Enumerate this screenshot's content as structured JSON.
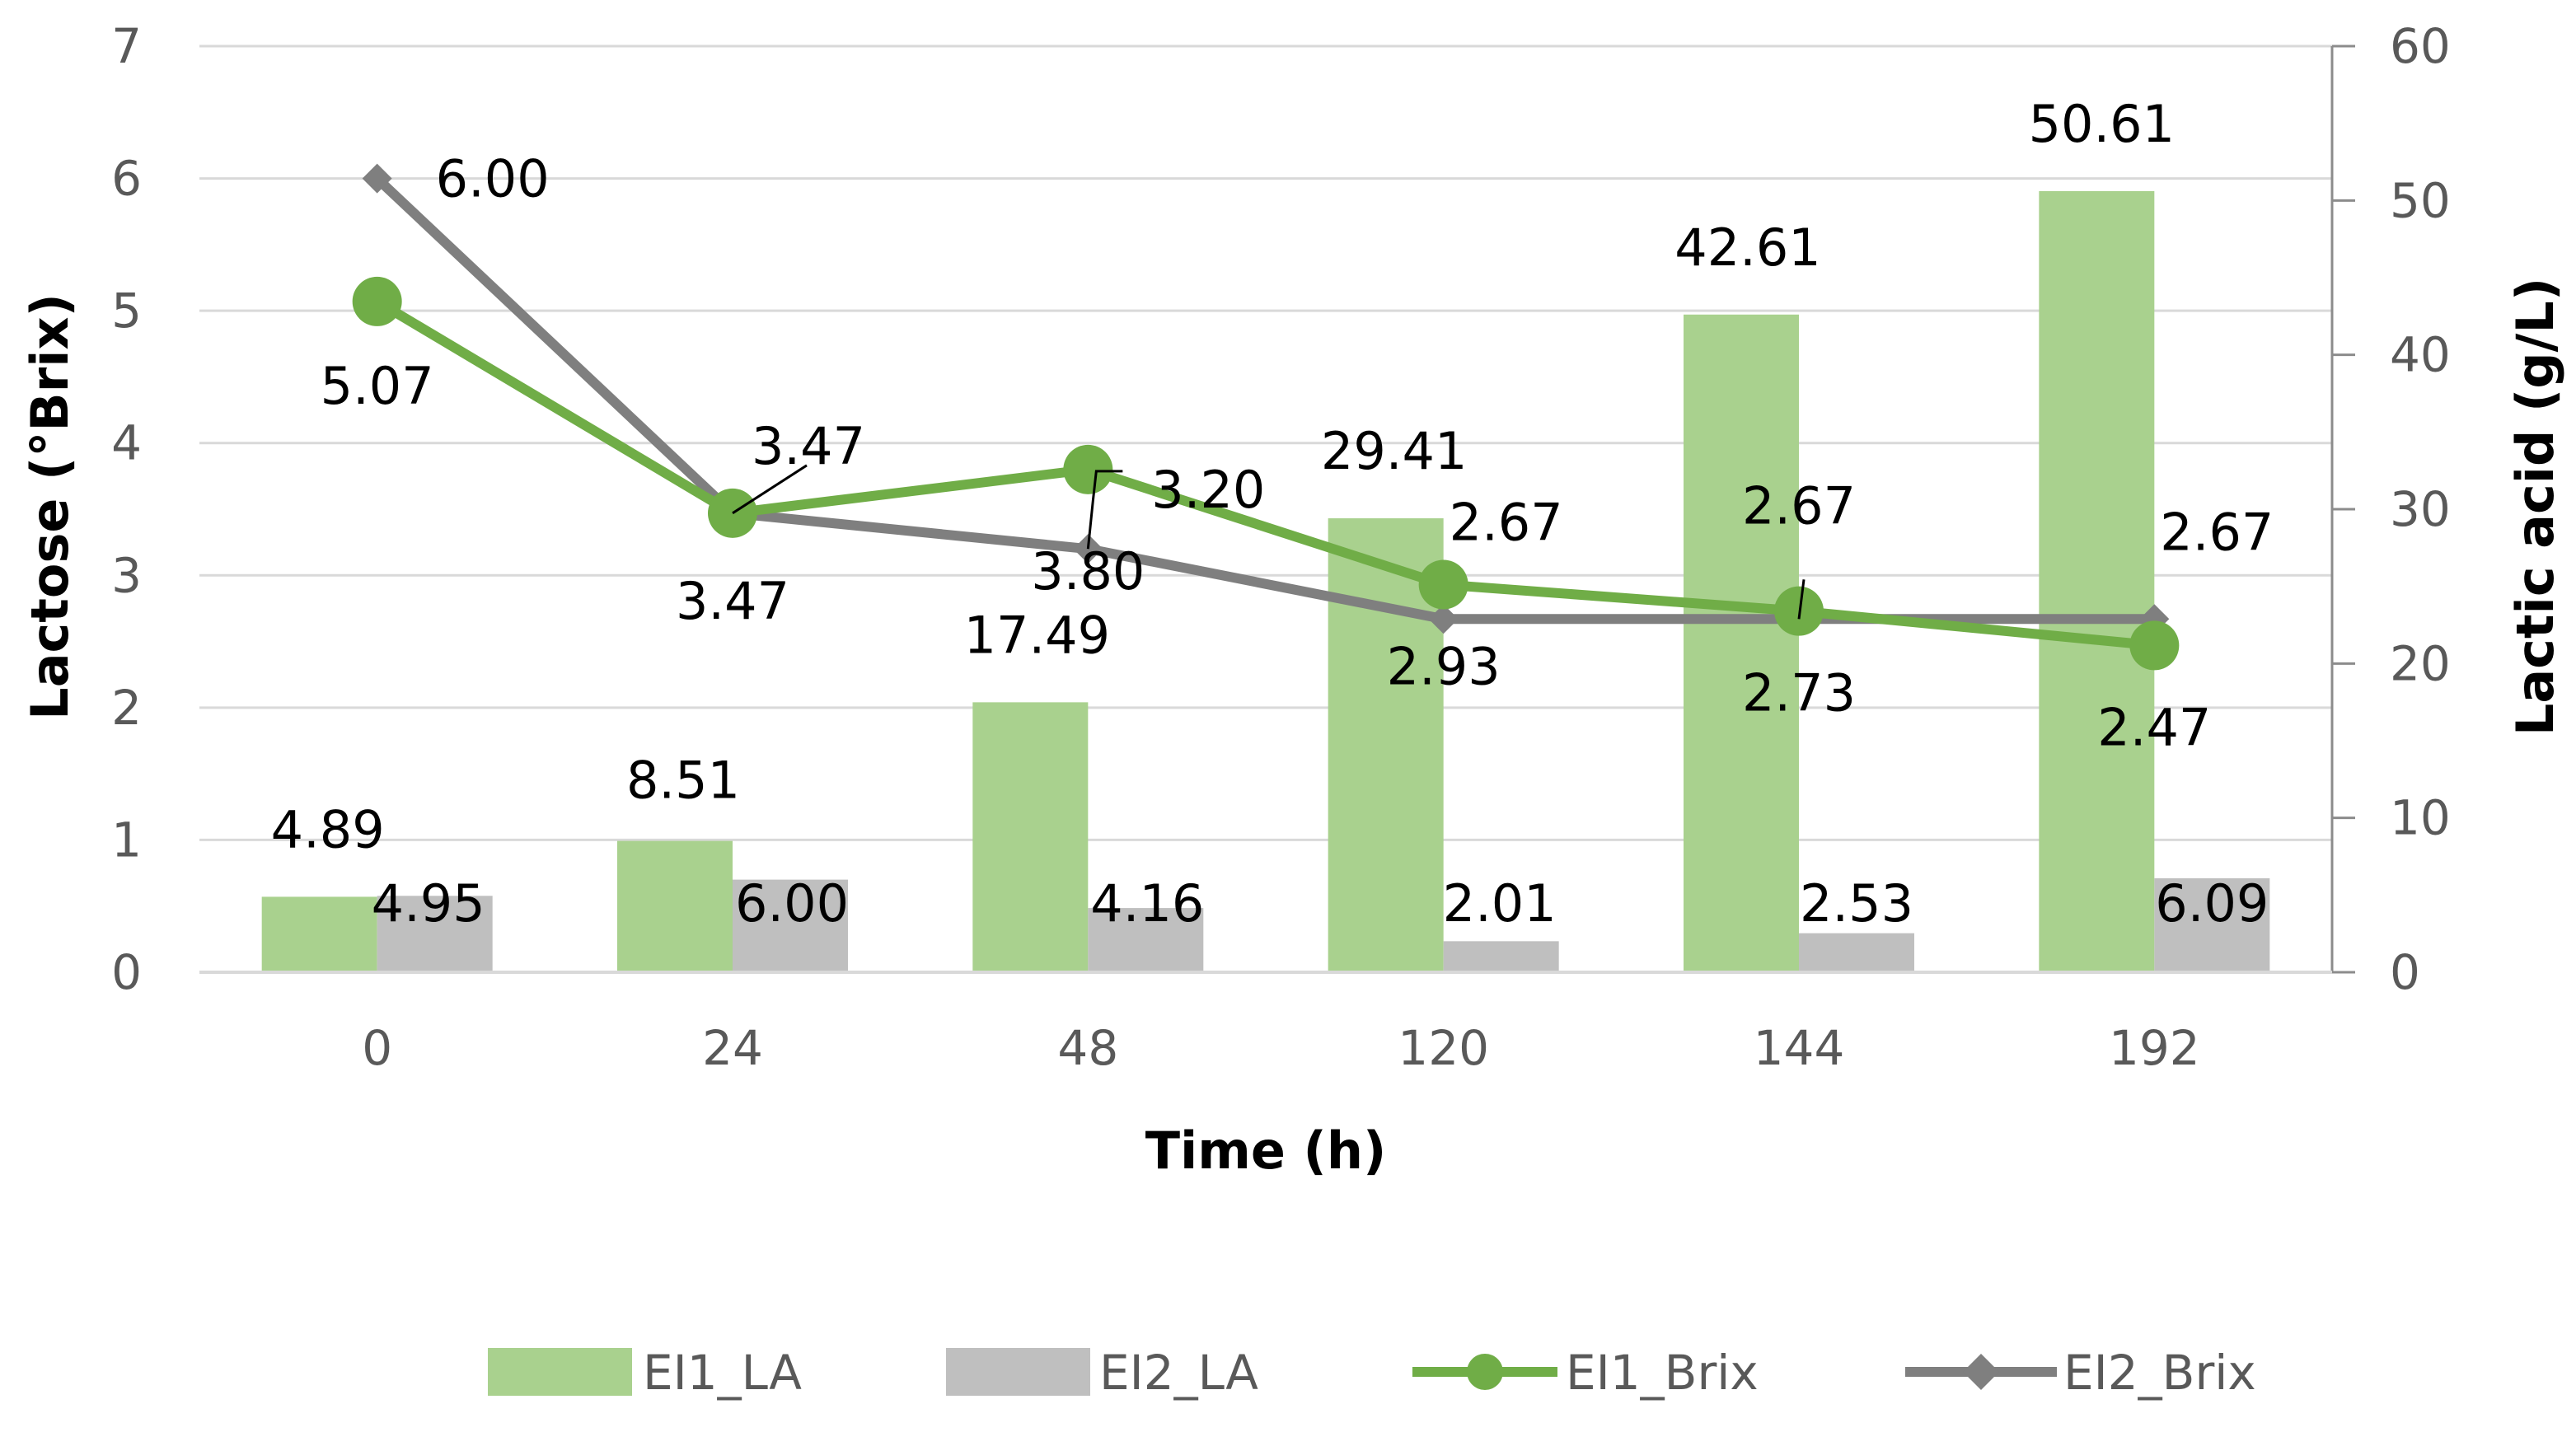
{
  "colors": {
    "ei1_bar": "#a9d18e",
    "ei2_bar": "#bfbfbf",
    "ei1_line": "#70ad47",
    "ei2_line": "#7f7f7f",
    "grid": "#d9d9d9",
    "tick_text": "#595959",
    "right_axis": "#8c8c8c"
  },
  "chart_data": {
    "type": "bar+line",
    "categories": [
      "0",
      "24",
      "48",
      "120",
      "144",
      "192"
    ],
    "xlabel": "Time (h)",
    "ylabel_left": "Lactose (°Brix)",
    "ylabel_right": "Lactic  acid (g/L)",
    "ylim_left": [
      0,
      7
    ],
    "ylim_right": [
      0,
      60
    ],
    "yticks_left": [
      "0",
      "1",
      "2",
      "3",
      "4",
      "5",
      "6",
      "7"
    ],
    "yticks_right": [
      "0",
      "10",
      "20",
      "30",
      "40",
      "50",
      "60"
    ],
    "grid": true,
    "legend_position": "bottom",
    "bar_series": [
      {
        "name": "EI1_LA",
        "axis": "right",
        "values": [
          4.89,
          8.51,
          17.49,
          29.41,
          42.61,
          50.61
        ],
        "labels": [
          "4.89",
          "8.51",
          "17.49",
          "29.41",
          "42.61",
          "50.61"
        ]
      },
      {
        "name": "EI2_LA",
        "axis": "right",
        "values": [
          4.95,
          6.0,
          4.16,
          2.01,
          2.53,
          6.09
        ],
        "labels": [
          "4.95",
          "6.00",
          "4.16",
          "2.01",
          "2.53",
          "6.09"
        ]
      }
    ],
    "line_series": [
      {
        "name": "EI1_Brix",
        "axis": "left",
        "marker": "circle",
        "values": [
          5.07,
          3.47,
          3.8,
          2.93,
          2.73,
          2.47
        ],
        "labels": [
          "5.07",
          "3.47",
          "3.80",
          "2.93",
          "2.73",
          "2.47"
        ]
      },
      {
        "name": "EI2_Brix",
        "axis": "left",
        "marker": "diamond",
        "values": [
          6.0,
          3.47,
          3.2,
          2.67,
          2.67,
          2.67
        ],
        "labels": [
          "6.00",
          "3.47",
          "3.20",
          "2.67",
          "2.67",
          "2.67"
        ]
      }
    ]
  }
}
